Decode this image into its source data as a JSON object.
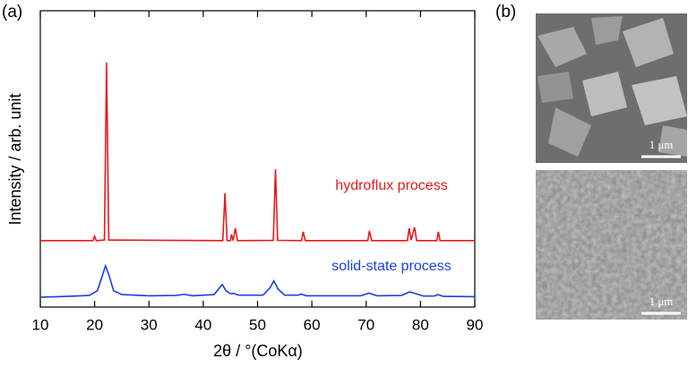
{
  "chart_data": {
    "type": "line",
    "panel_label": "(a)",
    "xlabel": "2θ / °(CoKα)",
    "ylabel": "Intensity / arb. unit",
    "xlim": [
      10,
      90
    ],
    "xticks": [
      10,
      20,
      30,
      40,
      50,
      60,
      70,
      80,
      90
    ],
    "ylim": [
      0,
      100
    ],
    "series": [
      {
        "name": "hydroflux process",
        "color": "#e8191c",
        "x": [
          10,
          19.7,
          20,
          20.3,
          21.8,
          22.2,
          22.6,
          43.6,
          44,
          44.4,
          45,
          45.2,
          45.5,
          45.9,
          46.3,
          52.9,
          53.3,
          53.7,
          58.1,
          58.4,
          58.8,
          70.3,
          70.6,
          71,
          77.6,
          77.9,
          78.3,
          78.9,
          79.3,
          83,
          83.3,
          83.6,
          90
        ],
        "values": [
          22.4,
          22.4,
          23.9,
          22.4,
          22.6,
          82.5,
          22.6,
          22.4,
          38.4,
          22.4,
          22.4,
          24.5,
          22.4,
          26.6,
          22.4,
          22.5,
          46.5,
          22.5,
          22.4,
          25.4,
          22.4,
          22.4,
          25.7,
          22.4,
          22.4,
          26.6,
          22.6,
          26.9,
          22.4,
          22.4,
          25.4,
          22.4,
          22.4
        ]
      },
      {
        "name": "solid-state process",
        "color": "#1a3fe0",
        "x": [
          10,
          15,
          19,
          20.5,
          21.5,
          22,
          22.6,
          23.5,
          25,
          30,
          35,
          36.5,
          38,
          42,
          43,
          43.5,
          44.2,
          45,
          45.6,
          46.5,
          51,
          52.3,
          53,
          53.8,
          55,
          57.5,
          58,
          59,
          69,
          70.5,
          72,
          76.5,
          78,
          79.2,
          80.5,
          82.5,
          83.2,
          84.2,
          90
        ],
        "values": [
          3.3,
          3.6,
          3.9,
          5.5,
          11,
          13.9,
          11,
          5.5,
          4.2,
          3.8,
          3.9,
          4.3,
          3.8,
          4.2,
          6.5,
          7.6,
          5.5,
          4.5,
          4.6,
          4,
          4,
          6.5,
          8.8,
          6,
          4,
          4,
          4.4,
          3.8,
          3.8,
          4.7,
          3.8,
          3.9,
          5.1,
          4.5,
          3.7,
          3.7,
          4.2,
          3.6,
          3.5
        ]
      }
    ]
  },
  "panel_b": {
    "label": "(b)",
    "images": [
      {
        "scale_bar": "1 μm"
      },
      {
        "scale_bar": "1 μm"
      }
    ]
  }
}
